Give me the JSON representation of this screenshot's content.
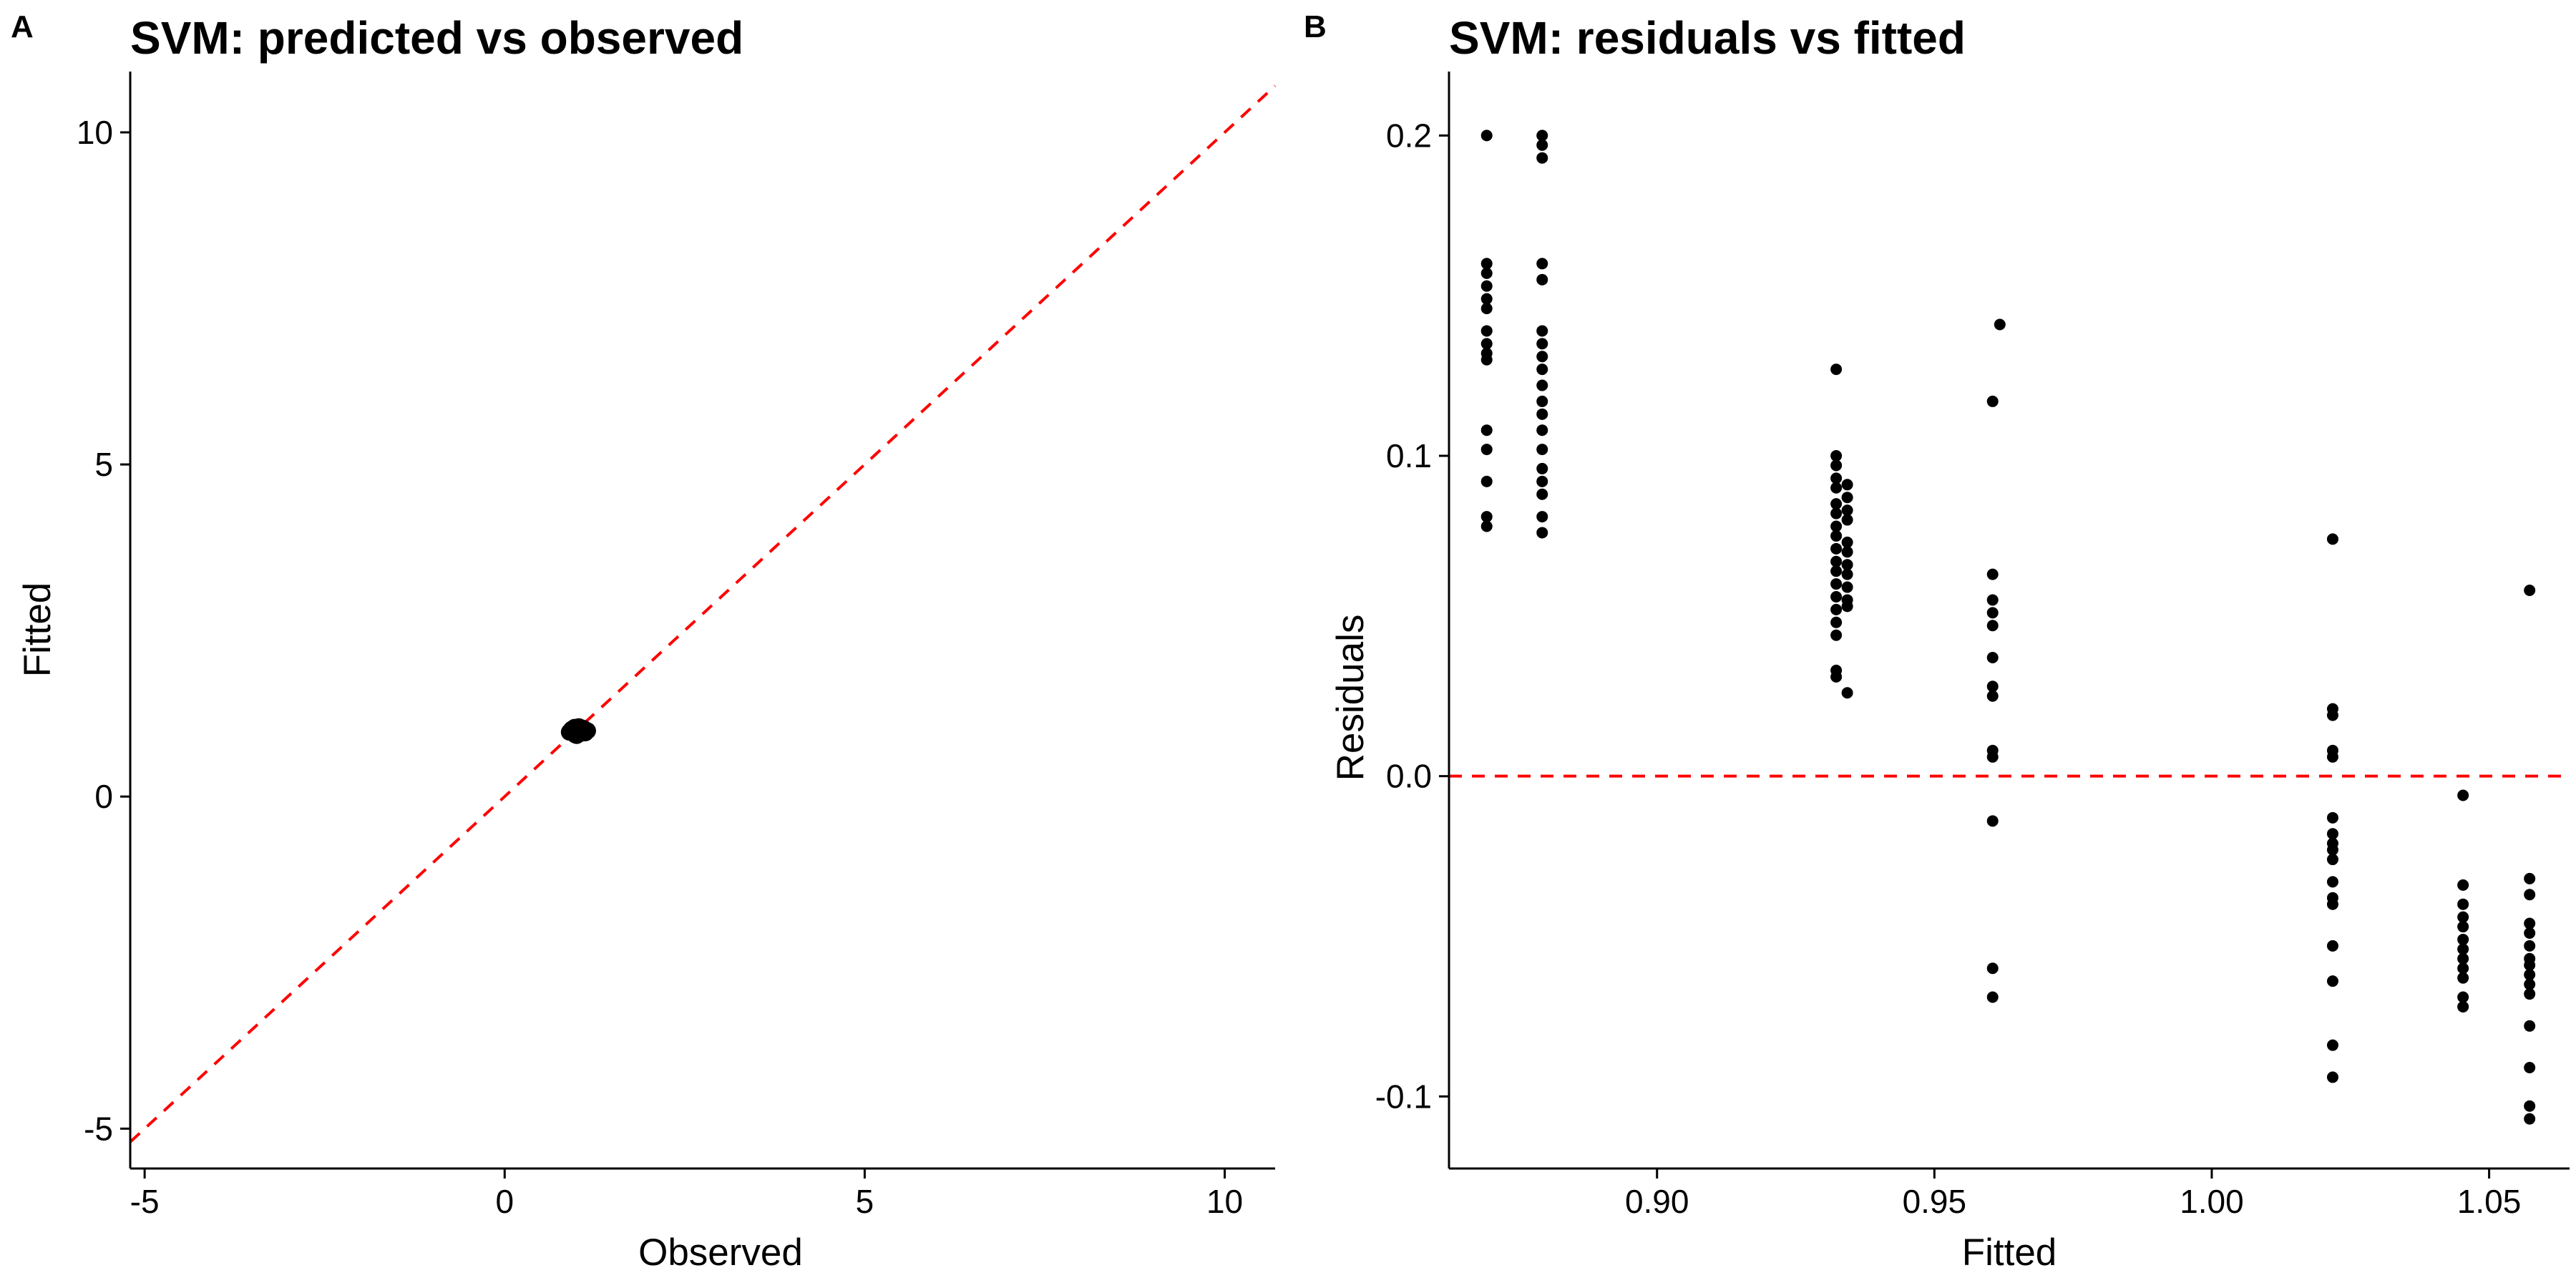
{
  "chart_data": [
    {
      "type": "scatter",
      "panel": "A",
      "title": "SVM: predicted vs observed",
      "xlabel": "Observed",
      "ylabel": "Fitted",
      "xlim": [
        -5.2,
        10.7
      ],
      "ylim": [
        -5.6,
        10.7
      ],
      "xticks": [
        -5,
        0,
        5,
        10
      ],
      "yticks": [
        -5,
        0,
        5,
        10
      ],
      "xtick_labels": [
        "-5",
        "0",
        "5",
        "10"
      ],
      "ytick_labels": [
        "-5",
        "0",
        "5",
        "10"
      ],
      "reference_line": {
        "type": "identity",
        "slope": 1,
        "intercept": 0,
        "color": "#ff0000",
        "style": "dashed"
      },
      "points": [
        [
          0.95,
          0.98
        ],
        [
          1.0,
          1.0
        ],
        [
          1.05,
          0.95
        ],
        [
          1.1,
          1.02
        ],
        [
          0.98,
          0.93
        ],
        [
          1.03,
          1.05
        ],
        [
          1.07,
          0.97
        ],
        [
          0.93,
          1.01
        ],
        [
          1.12,
          0.96
        ],
        [
          1.0,
          0.92
        ],
        [
          0.97,
          1.04
        ],
        [
          1.08,
          1.03
        ],
        [
          1.15,
          0.99
        ],
        [
          0.9,
          0.97
        ],
        [
          1.02,
          0.95
        ]
      ],
      "grid": false
    },
    {
      "type": "scatter",
      "panel": "B",
      "title": "SVM: residuals vs fitted",
      "xlabel": "Fitted",
      "ylabel": "Residuals",
      "xlim": [
        0.8625,
        1.0645
      ],
      "ylim": [
        -0.1225,
        0.2155
      ],
      "xticks": [
        0.9,
        0.95,
        1.0,
        1.05
      ],
      "yticks": [
        -0.1,
        0.0,
        0.1,
        0.2
      ],
      "xtick_labels": [
        "0.90",
        "0.95",
        "1.00",
        "1.05"
      ],
      "ytick_labels": [
        "-0.1",
        "0.0",
        "0.1",
        "0.2"
      ],
      "reference_line": {
        "type": "horizontal",
        "y": 0,
        "color": "#ff0000",
        "style": "dashed"
      },
      "grid": false,
      "points": [
        [
          0.8693,
          0.2
        ],
        [
          0.8693,
          0.16
        ],
        [
          0.8693,
          0.157
        ],
        [
          0.8693,
          0.153
        ],
        [
          0.8693,
          0.149
        ],
        [
          0.8693,
          0.146
        ],
        [
          0.8693,
          0.139
        ],
        [
          0.8693,
          0.135
        ],
        [
          0.8693,
          0.132
        ],
        [
          0.8693,
          0.13
        ],
        [
          0.8693,
          0.108
        ],
        [
          0.8693,
          0.102
        ],
        [
          0.8693,
          0.092
        ],
        [
          0.8693,
          0.081
        ],
        [
          0.8693,
          0.078
        ],
        [
          0.8793,
          0.2
        ],
        [
          0.8793,
          0.197
        ],
        [
          0.8793,
          0.193
        ],
        [
          0.8793,
          0.16
        ],
        [
          0.8793,
          0.155
        ],
        [
          0.8793,
          0.139
        ],
        [
          0.8793,
          0.135
        ],
        [
          0.8793,
          0.131
        ],
        [
          0.8793,
          0.127
        ],
        [
          0.8793,
          0.122
        ],
        [
          0.8793,
          0.117
        ],
        [
          0.8793,
          0.113
        ],
        [
          0.8793,
          0.108
        ],
        [
          0.8793,
          0.102
        ],
        [
          0.8793,
          0.096
        ],
        [
          0.8793,
          0.092
        ],
        [
          0.8793,
          0.088
        ],
        [
          0.8793,
          0.081
        ],
        [
          0.8793,
          0.076
        ],
        [
          0.9323,
          0.127
        ],
        [
          0.9323,
          0.1
        ],
        [
          0.9323,
          0.097
        ],
        [
          0.9323,
          0.093
        ],
        [
          0.9323,
          0.09
        ],
        [
          0.9323,
          0.085
        ],
        [
          0.9323,
          0.082
        ],
        [
          0.9323,
          0.078
        ],
        [
          0.9323,
          0.075
        ],
        [
          0.9323,
          0.071
        ],
        [
          0.9323,
          0.067
        ],
        [
          0.9323,
          0.064
        ],
        [
          0.9323,
          0.06
        ],
        [
          0.9323,
          0.056
        ],
        [
          0.9323,
          0.052
        ],
        [
          0.9323,
          0.048
        ],
        [
          0.9323,
          0.044
        ],
        [
          0.9323,
          0.033
        ],
        [
          0.9323,
          0.031
        ],
        [
          0.9343,
          0.091
        ],
        [
          0.9343,
          0.087
        ],
        [
          0.9343,
          0.083
        ],
        [
          0.9343,
          0.08
        ],
        [
          0.9343,
          0.073
        ],
        [
          0.9343,
          0.07
        ],
        [
          0.9343,
          0.066
        ],
        [
          0.9343,
          0.063
        ],
        [
          0.9343,
          0.059
        ],
        [
          0.9343,
          0.055
        ],
        [
          0.9343,
          0.053
        ],
        [
          0.9343,
          0.026
        ],
        [
          0.9605,
          0.117
        ],
        [
          0.9605,
          0.063
        ],
        [
          0.9605,
          0.055
        ],
        [
          0.9605,
          0.051
        ],
        [
          0.9605,
          0.047
        ],
        [
          0.9605,
          0.037
        ],
        [
          0.9605,
          0.028
        ],
        [
          0.9605,
          0.025
        ],
        [
          0.9605,
          0.008
        ],
        [
          0.9605,
          0.006
        ],
        [
          0.9605,
          -0.014
        ],
        [
          0.9605,
          -0.06
        ],
        [
          0.9605,
          -0.069
        ],
        [
          0.9618,
          0.141
        ],
        [
          1.0218,
          0.074
        ],
        [
          1.0218,
          0.021
        ],
        [
          1.0218,
          0.019
        ],
        [
          1.0218,
          0.008
        ],
        [
          1.0218,
          0.006
        ],
        [
          1.0218,
          -0.013
        ],
        [
          1.0218,
          -0.018
        ],
        [
          1.0218,
          -0.021
        ],
        [
          1.0218,
          -0.023
        ],
        [
          1.0218,
          -0.026
        ],
        [
          1.0218,
          -0.033
        ],
        [
          1.0218,
          -0.038
        ],
        [
          1.0218,
          -0.04
        ],
        [
          1.0218,
          -0.053
        ],
        [
          1.0218,
          -0.064
        ],
        [
          1.0218,
          -0.084
        ],
        [
          1.0218,
          -0.094
        ],
        [
          1.0453,
          -0.006
        ],
        [
          1.0453,
          -0.034
        ],
        [
          1.0453,
          -0.04
        ],
        [
          1.0453,
          -0.044
        ],
        [
          1.0453,
          -0.047
        ],
        [
          1.0453,
          -0.051
        ],
        [
          1.0453,
          -0.054
        ],
        [
          1.0453,
          -0.057
        ],
        [
          1.0453,
          -0.06
        ],
        [
          1.0453,
          -0.063
        ],
        [
          1.0453,
          -0.069
        ],
        [
          1.0453,
          -0.072
        ],
        [
          1.0573,
          0.058
        ],
        [
          1.0573,
          -0.032
        ],
        [
          1.0573,
          -0.037
        ],
        [
          1.0573,
          -0.046
        ],
        [
          1.0573,
          -0.049
        ],
        [
          1.0573,
          -0.053
        ],
        [
          1.0573,
          -0.057
        ],
        [
          1.0573,
          -0.059
        ],
        [
          1.0573,
          -0.062
        ],
        [
          1.0573,
          -0.065
        ],
        [
          1.0573,
          -0.068
        ],
        [
          1.0573,
          -0.078
        ],
        [
          1.0573,
          -0.091
        ],
        [
          1.0573,
          -0.103
        ],
        [
          1.0573,
          -0.107
        ]
      ]
    }
  ],
  "panel_tags": [
    "A",
    "B"
  ]
}
